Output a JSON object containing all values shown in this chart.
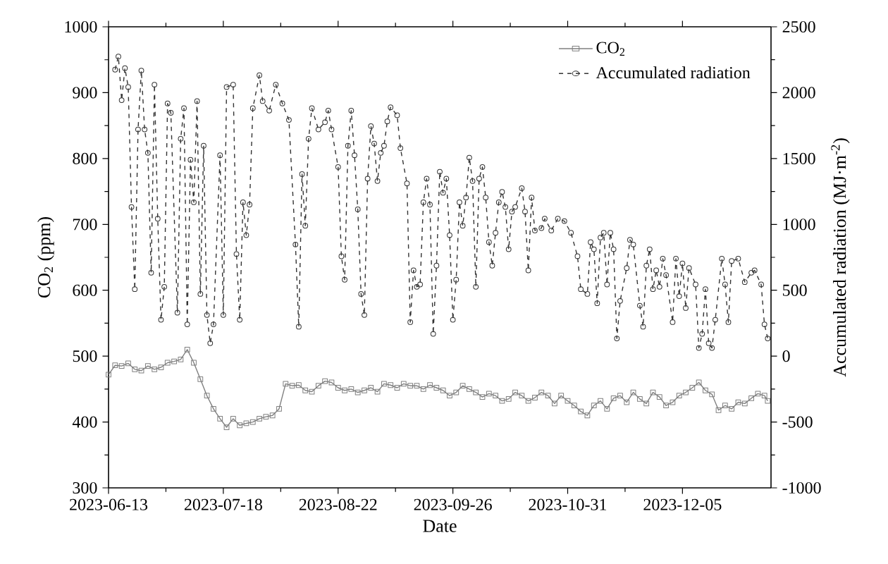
{
  "chart_data": {
    "type": "line",
    "xlabel": "Date",
    "ylabel": "CO$_{2}$ (ppm)",
    "y2label": "Accumulated radiation (MJ·m$^{-2}$)",
    "xlim": [
      "2023-06-13",
      "2024-01-01"
    ],
    "xticks": [
      "2023-06-13",
      "2023-07-18",
      "2023-08-22",
      "2023-09-26",
      "2023-10-31",
      "2023-12-05"
    ],
    "ylim": [
      300,
      1000
    ],
    "yticks": [
      300,
      400,
      500,
      600,
      700,
      800,
      900,
      1000
    ],
    "y2lim": [
      -1000,
      2500
    ],
    "y2ticks": [
      -1000,
      -500,
      0,
      500,
      1000,
      1500,
      2000,
      2500
    ],
    "legend": "top right",
    "grid": false,
    "series": [
      {
        "name": "CO$_{2}$",
        "color": "#7f7f7f",
        "marker": "square",
        "line_style": "solid",
        "x": [
          "2023-06-13",
          "2023-06-15",
          "2023-06-17",
          "2023-06-19",
          "2023-06-21",
          "2023-06-23",
          "2023-06-25",
          "2023-06-27",
          "2023-06-29",
          "2023-07-01",
          "2023-07-03",
          "2023-07-05",
          "2023-07-07",
          "2023-07-09",
          "2023-07-11",
          "2023-07-13",
          "2023-07-15",
          "2023-07-17",
          "2023-07-19",
          "2023-07-21",
          "2023-07-23",
          "2023-07-25",
          "2023-07-27",
          "2023-07-29",
          "2023-07-31",
          "2023-08-02",
          "2023-08-04",
          "2023-08-06",
          "2023-08-08",
          "2023-08-10",
          "2023-08-12",
          "2023-08-14",
          "2023-08-16",
          "2023-08-18",
          "2023-08-20",
          "2023-08-22",
          "2023-08-24",
          "2023-08-26",
          "2023-08-28",
          "2023-08-30",
          "2023-09-01",
          "2023-09-03",
          "2023-09-05",
          "2023-09-07",
          "2023-09-09",
          "2023-09-11",
          "2023-09-13",
          "2023-09-15",
          "2023-09-17",
          "2023-09-19",
          "2023-09-21",
          "2023-09-23",
          "2023-09-25",
          "2023-09-27",
          "2023-09-29",
          "2023-10-01",
          "2023-10-03",
          "2023-10-05",
          "2023-10-07",
          "2023-10-09",
          "2023-10-11",
          "2023-10-13",
          "2023-10-15",
          "2023-10-17",
          "2023-10-19",
          "2023-10-21",
          "2023-10-23",
          "2023-10-25",
          "2023-10-27",
          "2023-10-29",
          "2023-10-31",
          "2023-11-02",
          "2023-11-04",
          "2023-11-06",
          "2023-11-08",
          "2023-11-10",
          "2023-11-12",
          "2023-11-14",
          "2023-11-16",
          "2023-11-18",
          "2023-11-20",
          "2023-11-22",
          "2023-11-24",
          "2023-11-26",
          "2023-11-28",
          "2023-11-30",
          "2023-12-02",
          "2023-12-04",
          "2023-12-06",
          "2023-12-08",
          "2023-12-10",
          "2023-12-12",
          "2023-12-14",
          "2023-12-16",
          "2023-12-18",
          "2023-12-20",
          "2023-12-22",
          "2023-12-24",
          "2023-12-26",
          "2023-12-28",
          "2023-12-30",
          "2023-12-31"
        ],
        "values": [
          472,
          486,
          485,
          489,
          480,
          478,
          485,
          480,
          483,
          490,
          492,
          495,
          510,
          490,
          465,
          440,
          420,
          405,
          392,
          405,
          395,
          398,
          400,
          405,
          408,
          410,
          420,
          458,
          455,
          456,
          448,
          446,
          455,
          462,
          460,
          452,
          448,
          450,
          445,
          448,
          452,
          446,
          458,
          456,
          452,
          458,
          455,
          455,
          450,
          456,
          452,
          448,
          440,
          445,
          455,
          450,
          445,
          438,
          443,
          440,
          432,
          435,
          445,
          440,
          432,
          437,
          445,
          440,
          428,
          440,
          432,
          425,
          416,
          410,
          425,
          432,
          420,
          436,
          440,
          430,
          445,
          435,
          428,
          445,
          438,
          425,
          430,
          440,
          445,
          452,
          460,
          448,
          442,
          418,
          425,
          420,
          430,
          428,
          436,
          443,
          440,
          432
        ]
      },
      {
        "name": "Accumulated radiation",
        "color": "#333333",
        "marker": "circle",
        "line_style": "dashed",
        "axis": "y2",
        "x": [
          "2023-06-15",
          "2023-06-16",
          "2023-06-17",
          "2023-06-18",
          "2023-06-19",
          "2023-06-20",
          "2023-06-21",
          "2023-06-22",
          "2023-06-23",
          "2023-06-24",
          "2023-06-25",
          "2023-06-26",
          "2023-06-27",
          "2023-06-28",
          "2023-06-29",
          "2023-06-30",
          "2023-07-01",
          "2023-07-02",
          "2023-07-04",
          "2023-07-05",
          "2023-07-06",
          "2023-07-07",
          "2023-07-08",
          "2023-07-09",
          "2023-07-10",
          "2023-07-11",
          "2023-07-12",
          "2023-07-13",
          "2023-07-14",
          "2023-07-15",
          "2023-07-17",
          "2023-07-18",
          "2023-07-19",
          "2023-07-21",
          "2023-07-22",
          "2023-07-23",
          "2023-07-24",
          "2023-07-25",
          "2023-07-26",
          "2023-07-27",
          "2023-07-29",
          "2023-07-30",
          "2023-08-01",
          "2023-08-03",
          "2023-08-05",
          "2023-08-07",
          "2023-08-09",
          "2023-08-10",
          "2023-08-11",
          "2023-08-12",
          "2023-08-13",
          "2023-08-14",
          "2023-08-16",
          "2023-08-18",
          "2023-08-19",
          "2023-08-20",
          "2023-08-22",
          "2023-08-23",
          "2023-08-24",
          "2023-08-25",
          "2023-08-26",
          "2023-08-27",
          "2023-08-28",
          "2023-08-29",
          "2023-08-30",
          "2023-08-31",
          "2023-09-01",
          "2023-09-02",
          "2023-09-03",
          "2023-09-04",
          "2023-09-05",
          "2023-09-06",
          "2023-09-07",
          "2023-09-09",
          "2023-09-10",
          "2023-09-12",
          "2023-09-13",
          "2023-09-14",
          "2023-09-15",
          "2023-09-16",
          "2023-09-17",
          "2023-09-18",
          "2023-09-19",
          "2023-09-20",
          "2023-09-21",
          "2023-09-22",
          "2023-09-23",
          "2023-09-24",
          "2023-09-25",
          "2023-09-26",
          "2023-09-27",
          "2023-09-28",
          "2023-09-29",
          "2023-09-30",
          "2023-10-01",
          "2023-10-02",
          "2023-10-03",
          "2023-10-04",
          "2023-10-05",
          "2023-10-06",
          "2023-10-07",
          "2023-10-08",
          "2023-10-09",
          "2023-10-10",
          "2023-10-11",
          "2023-10-12",
          "2023-10-13",
          "2023-10-14",
          "2023-10-15",
          "2023-10-17",
          "2023-10-18",
          "2023-10-19",
          "2023-10-20",
          "2023-10-21",
          "2023-10-23",
          "2023-10-24",
          "2023-10-26",
          "2023-10-28",
          "2023-10-30",
          "2023-11-01",
          "2023-11-03",
          "2023-11-04",
          "2023-11-06",
          "2023-11-07",
          "2023-11-08",
          "2023-11-09",
          "2023-11-10",
          "2023-11-11",
          "2023-11-12",
          "2023-11-13",
          "2023-11-14",
          "2023-11-15",
          "2023-11-16",
          "2023-11-18",
          "2023-11-19",
          "2023-11-20",
          "2023-11-22",
          "2023-11-23",
          "2023-11-24",
          "2023-11-25",
          "2023-11-26",
          "2023-11-27",
          "2023-11-28",
          "2023-11-29",
          "2023-11-30",
          "2023-12-02",
          "2023-12-03",
          "2023-12-04",
          "2023-12-05",
          "2023-12-06",
          "2023-12-07",
          "2023-12-09",
          "2023-12-10",
          "2023-12-11",
          "2023-12-12",
          "2023-12-13",
          "2023-12-14",
          "2023-12-15",
          "2023-12-17",
          "2023-12-18",
          "2023-12-19",
          "2023-12-20",
          "2023-12-22",
          "2023-12-24",
          "2023-12-26",
          "2023-12-27",
          "2023-12-29",
          "2023-12-30",
          "2023-12-31"
        ],
        "values": [
          2175,
          2274,
          1943,
          2186,
          2043,
          1132,
          508,
          1721,
          2168,
          1721,
          1543,
          633,
          2061,
          1043,
          276,
          526,
          1918,
          1847,
          330,
          1650,
          1882,
          241,
          1490,
          1168,
          1936,
          472,
          1597,
          312,
          98,
          241,
          1525,
          312,
          2043,
          2061,
          775,
          276,
          1168,
          918,
          1150,
          1882,
          2132,
          1936,
          1864,
          2061,
          1918,
          1793,
          847,
          223,
          1382,
          990,
          1650,
          1882,
          1721,
          1776,
          1864,
          1721,
          1436,
          758,
          580,
          1597,
          1864,
          1525,
          1114,
          472,
          312,
          1347,
          1746,
          1614,
          1329,
          1543,
          1597,
          1782,
          1889,
          1829,
          1579,
          1311,
          258,
          651,
          526,
          544,
          1168,
          1347,
          1150,
          169,
          687,
          1400,
          1240,
          1347,
          918,
          276,
          580,
          1168,
          990,
          1204,
          1507,
          1329,
          526,
          1347,
          1436,
          1204,
          865,
          687,
          936,
          1168,
          1247,
          1132,
          811,
          1097,
          1132,
          1275,
          1097,
          651,
          1204,
          954,
          972,
          1043,
          954,
          1043,
          1025,
          936,
          758,
          508,
          472,
          865,
          811,
          401,
          900,
          936,
          544,
          936,
          811,
          134,
          419,
          669,
          883,
          847,
          383,
          223,
          687,
          811,
          508,
          651,
          526,
          740,
          615,
          258,
          740,
          455,
          704,
          365,
          669,
          544,
          62,
          169,
          508,
          98,
          62,
          276,
          740,
          544,
          258,
          722,
          740,
          562,
          633,
          651,
          544,
          241,
          134
        ]
      }
    ]
  }
}
